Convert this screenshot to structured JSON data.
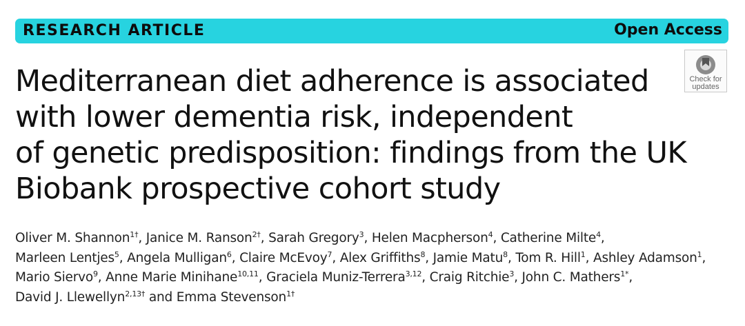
{
  "banner": {
    "left_label": "RESEARCH ARTICLE",
    "right_label": "Open Access",
    "color": "#27d3e0"
  },
  "badge": {
    "icon": "crossmark-icon",
    "line1": "Check for",
    "line2": "updates"
  },
  "title_lines": [
    "Mediterranean diet adherence is associated",
    "with lower dementia risk, independent",
    "of genetic predisposition: findings from the UK",
    "Biobank prospective cohort study"
  ],
  "authors": [
    {
      "name": "Oliver M. Shannon",
      "aff": "1†"
    },
    {
      "name": "Janice M. Ranson",
      "aff": "2†"
    },
    {
      "name": "Sarah Gregory",
      "aff": "3"
    },
    {
      "name": "Helen Macpherson",
      "aff": "4"
    },
    {
      "name": "Catherine Milte",
      "aff": "4"
    },
    {
      "name": "Marleen Lentjes",
      "aff": "5"
    },
    {
      "name": "Angela Mulligan",
      "aff": "6"
    },
    {
      "name": "Claire McEvoy",
      "aff": "7"
    },
    {
      "name": "Alex Griffiths",
      "aff": "8"
    },
    {
      "name": "Jamie Matu",
      "aff": "8"
    },
    {
      "name": "Tom R. Hill",
      "aff": "1"
    },
    {
      "name": "Ashley Adamson",
      "aff": "1"
    },
    {
      "name": "Mario Siervo",
      "aff": "9"
    },
    {
      "name": "Anne Marie Minihane",
      "aff": "10,11"
    },
    {
      "name": "Graciela Muniz-Terrera",
      "aff": "3,12"
    },
    {
      "name": "Craig Ritchie",
      "aff": "3"
    },
    {
      "name": "John C. Mathers",
      "aff": "1*"
    },
    {
      "name": "David J. Llewellyn",
      "aff": "2,13†"
    },
    {
      "name": "Emma Stevenson",
      "aff": "1†"
    }
  ],
  "author_separator": ", ",
  "final_conjunction": " and "
}
